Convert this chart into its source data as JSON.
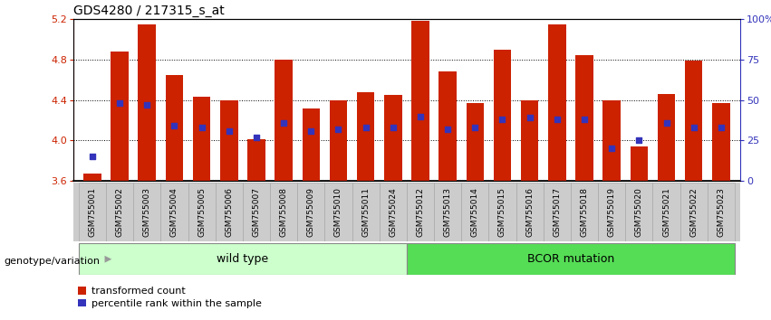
{
  "title": "GDS4280 / 217315_s_at",
  "samples": [
    "GSM755001",
    "GSM755002",
    "GSM755003",
    "GSM755004",
    "GSM755005",
    "GSM755006",
    "GSM755007",
    "GSM755008",
    "GSM755009",
    "GSM755010",
    "GSM755011",
    "GSM755024",
    "GSM755012",
    "GSM755013",
    "GSM755014",
    "GSM755015",
    "GSM755016",
    "GSM755017",
    "GSM755018",
    "GSM755019",
    "GSM755020",
    "GSM755021",
    "GSM755022",
    "GSM755023"
  ],
  "bar_values": [
    3.67,
    4.88,
    5.15,
    4.65,
    4.43,
    4.4,
    4.01,
    4.8,
    4.32,
    4.4,
    4.48,
    4.45,
    5.18,
    4.68,
    4.37,
    4.9,
    4.4,
    5.15,
    4.84,
    4.4,
    3.94,
    4.46,
    4.79,
    4.37
  ],
  "percentile_values": [
    15,
    48,
    47,
    34,
    33,
    31,
    27,
    36,
    31,
    32,
    33,
    33,
    40,
    32,
    33,
    38,
    39,
    38,
    38,
    20,
    25,
    36,
    33,
    33
  ],
  "ymin": 3.6,
  "ymax": 5.2,
  "yticks_left": [
    3.6,
    4.0,
    4.4,
    4.8,
    5.2
  ],
  "yticks_right": [
    0,
    25,
    50,
    75,
    100
  ],
  "right_ylabels": [
    "0",
    "25",
    "50",
    "75",
    "100%"
  ],
  "bar_color": "#cc2200",
  "dot_color": "#3333bb",
  "bar_baseline": 3.6,
  "group1_label": "wild type",
  "group2_label": "BCOR mutation",
  "n_group1": 12,
  "group1_color": "#ccffcc",
  "group2_color": "#55dd55",
  "left_axis_color": "#cc2200",
  "right_axis_color": "#3333bb",
  "title_fontsize": 10,
  "bar_width": 0.65,
  "legend_label1": "transformed count",
  "legend_label2": "percentile rank within the sample",
  "hgrid_lines": [
    4.0,
    4.4,
    4.8
  ],
  "xtick_bg_color": "#cccccc",
  "genotype_label": "genotype/variation"
}
